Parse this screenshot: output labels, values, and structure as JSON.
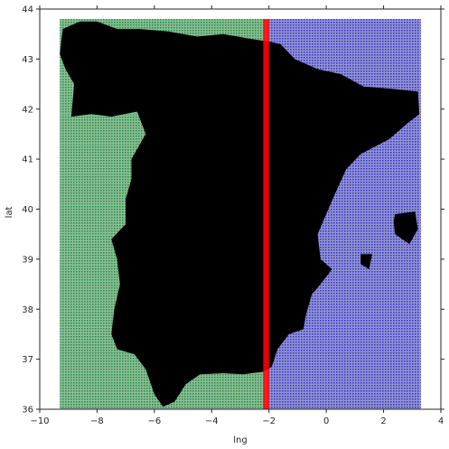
{
  "chart_data": {
    "type": "scatter",
    "title": "",
    "xlabel": "lng",
    "ylabel": "lat",
    "xlim": [
      -10,
      4
    ],
    "ylim": [
      36,
      44
    ],
    "xticks": [
      "−10",
      "−8",
      "−6",
      "−4",
      "−2",
      "0",
      "2",
      "4"
    ],
    "yticks": [
      "36",
      "37",
      "38",
      "39",
      "40",
      "41",
      "42",
      "43",
      "44"
    ],
    "grid": false,
    "legend": "none",
    "description_regions": {
      "grid_extent": {
        "lng": [
          -9.3,
          3.3
        ],
        "lat": [
          36.0,
          43.8
        ]
      },
      "west_of_divide_color": "#2e8b45",
      "east_of_divide_color": "#3a3ab8",
      "divide_line_lng": -2.1,
      "divide_color": "#ff0000",
      "landmass_color": "#000000"
    },
    "series": [
      {
        "color": "#2e8b45",
        "lng_range": [
          -9.3,
          -2.15
        ],
        "lat_range": [
          36.0,
          43.8
        ]
      },
      {
        "color": "#3a3ab8",
        "lng_range": [
          -2.05,
          3.3
        ],
        "lat_range": [
          36.0,
          43.8
        ]
      },
      {
        "color": "#ff0000",
        "lng_range": [
          -2.2,
          -2.0
        ],
        "lat_range": [
          36.0,
          43.8
        ]
      },
      {
        "color": "#000000",
        "outline": [
          [
            -9.2,
            43.6
          ],
          [
            -8.6,
            43.75
          ],
          [
            -8.0,
            43.75
          ],
          [
            -7.3,
            43.6
          ],
          [
            -6.5,
            43.6
          ],
          [
            -5.5,
            43.55
          ],
          [
            -4.5,
            43.45
          ],
          [
            -3.6,
            43.5
          ],
          [
            -2.6,
            43.4
          ],
          [
            -2.0,
            43.35
          ],
          [
            -1.6,
            43.3
          ],
          [
            -1.1,
            43.0
          ],
          [
            -0.3,
            42.8
          ],
          [
            0.5,
            42.7
          ],
          [
            1.3,
            42.45
          ],
          [
            2.4,
            42.4
          ],
          [
            3.2,
            42.35
          ],
          [
            3.25,
            41.9
          ],
          [
            2.8,
            41.7
          ],
          [
            2.2,
            41.4
          ],
          [
            1.2,
            41.1
          ],
          [
            0.7,
            40.8
          ],
          [
            0.3,
            40.3
          ],
          [
            0.0,
            39.9
          ],
          [
            -0.3,
            39.5
          ],
          [
            -0.2,
            39.0
          ],
          [
            0.2,
            38.8
          ],
          [
            -0.2,
            38.5
          ],
          [
            -0.5,
            38.3
          ],
          [
            -0.7,
            37.9
          ],
          [
            -0.8,
            37.6
          ],
          [
            -1.3,
            37.5
          ],
          [
            -1.7,
            37.2
          ],
          [
            -1.9,
            36.85
          ],
          [
            -2.2,
            36.75
          ],
          [
            -2.9,
            36.7
          ],
          [
            -3.6,
            36.72
          ],
          [
            -4.4,
            36.7
          ],
          [
            -4.9,
            36.5
          ],
          [
            -5.3,
            36.15
          ],
          [
            -5.7,
            36.05
          ],
          [
            -6.0,
            36.3
          ],
          [
            -6.3,
            36.8
          ],
          [
            -6.7,
            37.1
          ],
          [
            -7.3,
            37.2
          ],
          [
            -7.5,
            37.5
          ],
          [
            -7.4,
            38.0
          ],
          [
            -7.2,
            38.5
          ],
          [
            -7.3,
            39.0
          ],
          [
            -7.5,
            39.4
          ],
          [
            -7.0,
            39.7
          ],
          [
            -7.0,
            40.2
          ],
          [
            -6.8,
            40.6
          ],
          [
            -6.8,
            41.0
          ],
          [
            -6.3,
            41.5
          ],
          [
            -6.6,
            41.95
          ],
          [
            -7.5,
            41.85
          ],
          [
            -8.2,
            41.9
          ],
          [
            -8.9,
            41.85
          ],
          [
            -8.8,
            42.5
          ],
          [
            -9.1,
            42.8
          ],
          [
            -9.3,
            43.1
          ],
          [
            -9.2,
            43.6
          ]
        ],
        "islands": [
          [
            [
              2.4,
              39.9
            ],
            [
              3.1,
              39.95
            ],
            [
              3.2,
              39.6
            ],
            [
              2.9,
              39.3
            ],
            [
              2.4,
              39.5
            ],
            [
              2.35,
              39.75
            ]
          ],
          [
            [
              1.2,
              39.1
            ],
            [
              1.6,
              39.1
            ],
            [
              1.5,
              38.8
            ],
            [
              1.2,
              38.9
            ]
          ]
        ]
      }
    ]
  }
}
